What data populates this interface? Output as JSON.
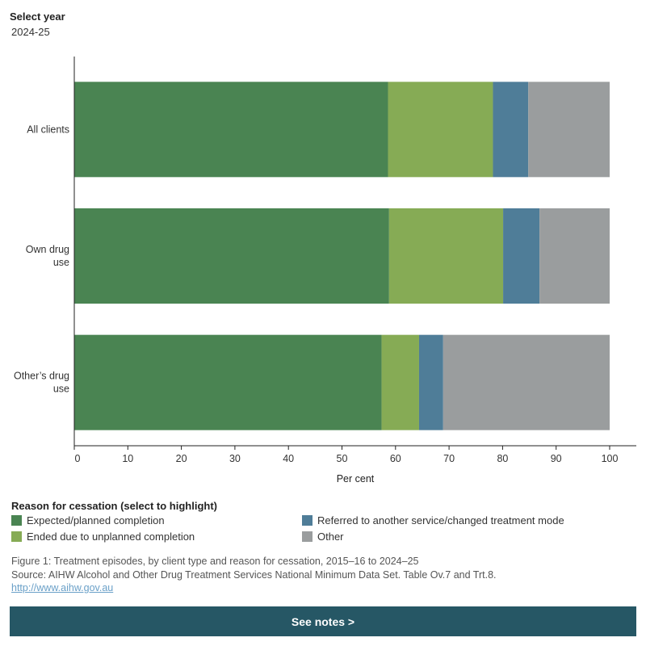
{
  "controls": {
    "year_label": "Select year",
    "year_value": "2024-25"
  },
  "chart_data": {
    "type": "bar",
    "orientation": "horizontal",
    "stacked": true,
    "categories": [
      [
        "All clients"
      ],
      [
        "Own drug",
        "use"
      ],
      [
        "Other’s drug",
        "use"
      ]
    ],
    "series": [
      {
        "name": "Expected/planned completion",
        "color": "#4a8452",
        "values": [
          58.6,
          58.8,
          57.4
        ]
      },
      {
        "name": "Ended due to unplanned completion",
        "color": "#86ab55",
        "values": [
          19.6,
          21.3,
          7.0
        ]
      },
      {
        "name": "Referred to another service/changed treatment mode",
        "color": "#4f7d98",
        "values": [
          6.6,
          6.8,
          4.5
        ]
      },
      {
        "name": "Other",
        "color": "#9a9d9e",
        "values": [
          15.2,
          13.1,
          31.1
        ]
      }
    ],
    "xlim": [
      0,
      100
    ],
    "xticks": [
      0,
      10,
      20,
      30,
      40,
      50,
      60,
      70,
      80,
      90,
      100
    ],
    "xlabel": "Per cent",
    "ylabel": "",
    "grid": false
  },
  "legend": {
    "title": "Reason for cessation (select to highlight)",
    "items": [
      {
        "label": "Expected/planned completion",
        "color": "#4a8452"
      },
      {
        "label": "Ended due to unplanned completion",
        "color": "#86ab55"
      },
      {
        "label": "Referred to another service/changed treatment mode",
        "color": "#4f7d98"
      },
      {
        "label": "Other",
        "color": "#9a9d9e"
      }
    ]
  },
  "footer": {
    "caption": "Figure 1: Treatment episodes, by client type and reason for cessation, 2015–16 to 2024–25",
    "source": "Source: AIHW Alcohol and Other Drug Treatment Services National Minimum Data Set. Table Ov.7 and Trt.8.",
    "link": "http://www.aihw.gov.au",
    "notes_button": "See notes >"
  }
}
